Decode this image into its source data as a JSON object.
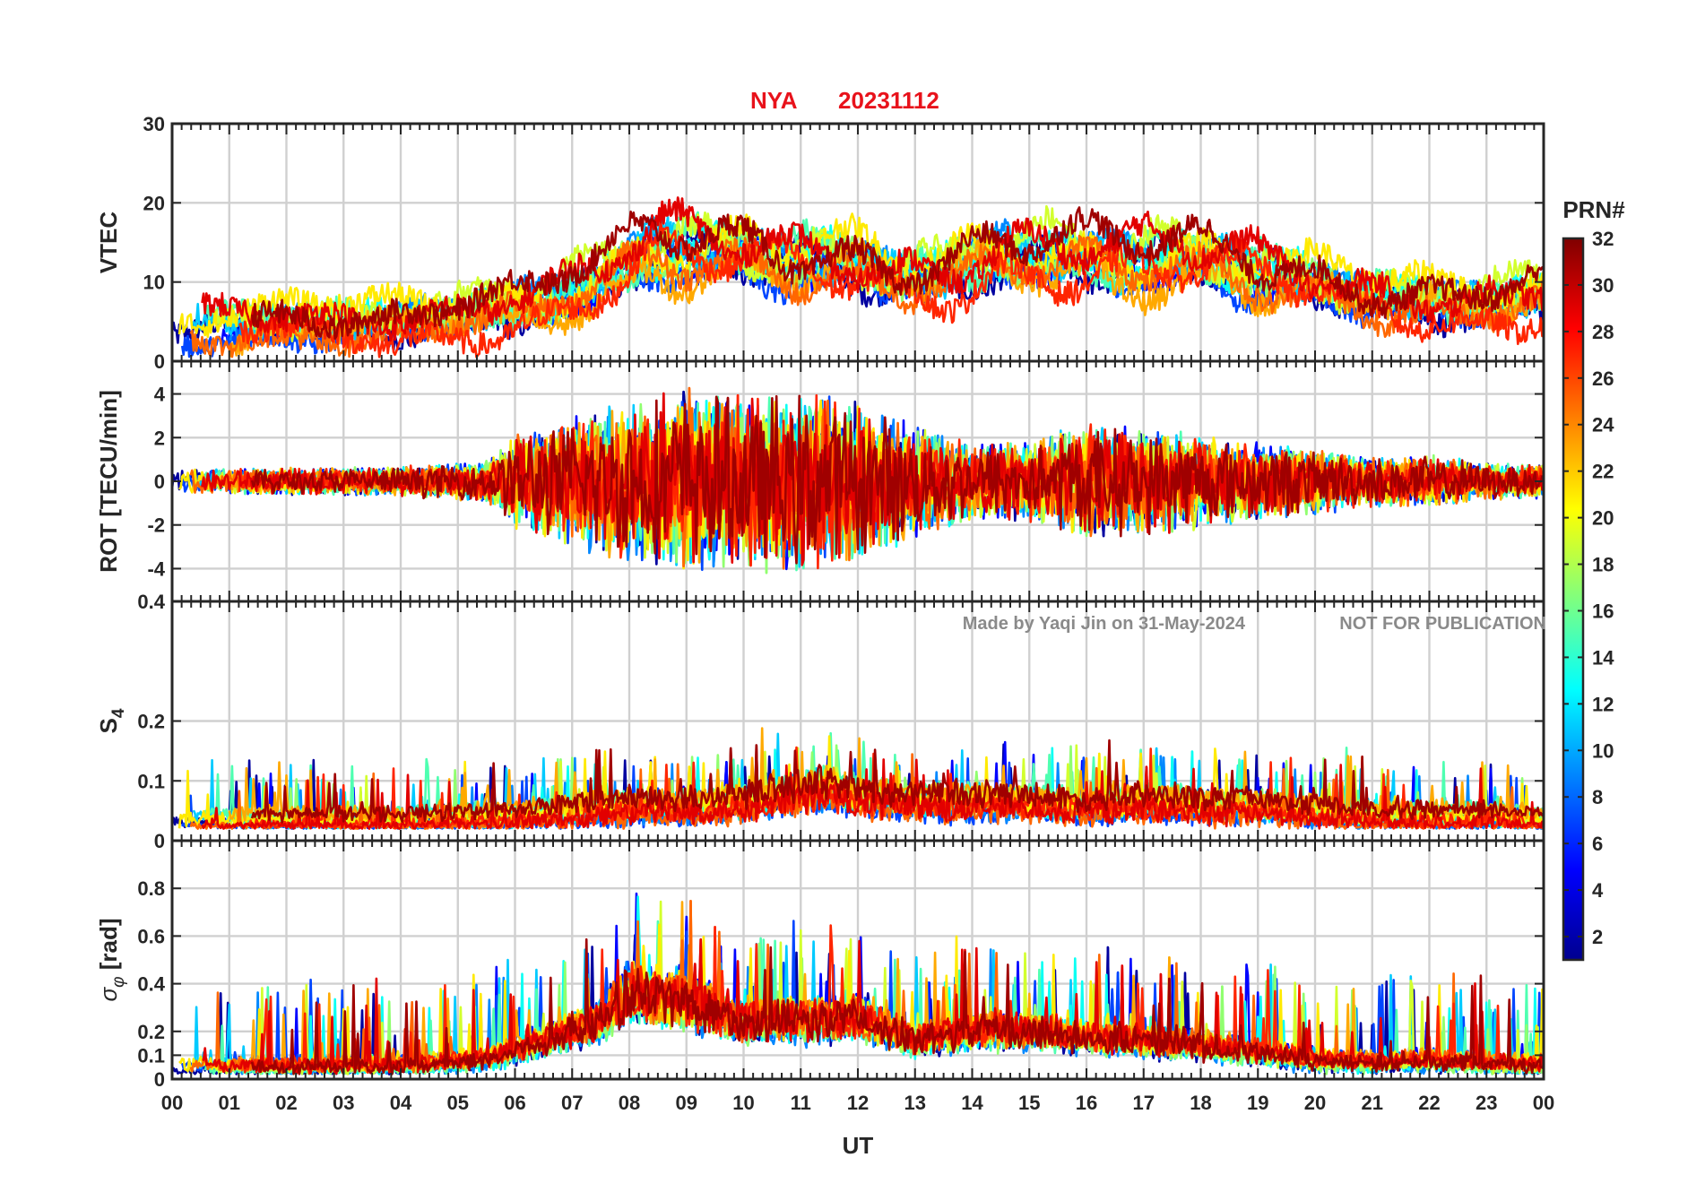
{
  "chart_data": {
    "type": "line",
    "title_station": "NYA",
    "title_date": "20231112",
    "xlabel": "UT",
    "x_ticks": [
      "00",
      "01",
      "02",
      "03",
      "04",
      "05",
      "06",
      "07",
      "08",
      "09",
      "10",
      "11",
      "12",
      "13",
      "14",
      "15",
      "16",
      "17",
      "18",
      "19",
      "20",
      "21",
      "22",
      "23",
      "00"
    ],
    "xlim": [
      0,
      24
    ],
    "colorbar": {
      "label": "PRN#",
      "range": [
        1,
        32
      ],
      "ticks": [
        "32",
        "30",
        "28",
        "26",
        "24",
        "22",
        "20",
        "18",
        "16",
        "14",
        "12",
        "10",
        "8",
        "6",
        "4",
        "2"
      ],
      "colormap": "jet"
    },
    "watermark_left": "Made by Yaqi Jin on 31-May-2024",
    "watermark_right": "NOT FOR PUBLICATION",
    "panels": [
      {
        "name": "vtec",
        "ylabel": "VTEC",
        "ylim": [
          0,
          30
        ],
        "y_ticks": [
          {
            "v": 0,
            "t": "0"
          },
          {
            "v": 10,
            "t": "10"
          },
          {
            "v": 20,
            "t": "20"
          },
          {
            "v": 30,
            "t": "30"
          }
        ],
        "series_kind": "level",
        "envelope_hours": [
          0,
          2,
          4,
          5.5,
          6.5,
          7.5,
          8.5,
          9.5,
          10.5,
          11.5,
          12.5,
          13.5,
          14.5,
          15.5,
          16.5,
          17.5,
          18.5,
          19.5,
          20.5,
          21.5,
          22.5,
          24
        ],
        "envelope_values": [
          4,
          5,
          5,
          6,
          7,
          10,
          14,
          14,
          13,
          13,
          11,
          11,
          13,
          13,
          12,
          13,
          12,
          11,
          9,
          8,
          7,
          8
        ],
        "spread": 3.5,
        "noise": 1.6
      },
      {
        "name": "rot",
        "ylabel": "ROT [TECU/min]",
        "ylim": [
          -5.5,
          5.5
        ],
        "y_ticks": [
          {
            "v": -4,
            "t": "-4"
          },
          {
            "v": -2,
            "t": "-2"
          },
          {
            "v": 0,
            "t": "0"
          },
          {
            "v": 2,
            "t": "2"
          },
          {
            "v": 4,
            "t": "4"
          }
        ],
        "series_kind": "oscillation",
        "envelope_hours": [
          0,
          4,
          5.5,
          6,
          7,
          8,
          9,
          10,
          11,
          12,
          13,
          14,
          15,
          16,
          17,
          18,
          19,
          20,
          21,
          22,
          23,
          24
        ],
        "envelope_values": [
          0.6,
          0.7,
          1.0,
          2.3,
          3.0,
          4.0,
          4.5,
          4.2,
          4.5,
          3.8,
          2.8,
          1.8,
          2.0,
          2.8,
          2.6,
          2.2,
          1.9,
          1.6,
          1.2,
          1.3,
          0.9,
          0.8
        ],
        "spread": 0,
        "noise": 0
      },
      {
        "name": "s4",
        "ylabel": "S4",
        "ylim": [
          0,
          0.4
        ],
        "y_ticks": [
          {
            "v": 0,
            "t": "0"
          },
          {
            "v": 0.1,
            "t": "0.1"
          },
          {
            "v": 0.2,
            "t": "0.2"
          },
          {
            "v": 0.4,
            "t": "0.4"
          }
        ],
        "series_kind": "positive",
        "envelope_hours": [
          0,
          4,
          6,
          7,
          8,
          9,
          10,
          11,
          11.5,
          12,
          13,
          14,
          15,
          16,
          17,
          18,
          19,
          20,
          21,
          22,
          23,
          24
        ],
        "envelope_values": [
          0.04,
          0.04,
          0.05,
          0.06,
          0.07,
          0.07,
          0.08,
          0.1,
          0.11,
          0.09,
          0.08,
          0.08,
          0.08,
          0.07,
          0.08,
          0.07,
          0.07,
          0.06,
          0.05,
          0.05,
          0.05,
          0.04
        ],
        "spread": 0.015,
        "noise": 0.03
      },
      {
        "name": "sigma_phi",
        "ylabel": "σ_φ [rad]",
        "ylim": [
          0,
          1
        ],
        "y_ticks": [
          {
            "v": 0,
            "t": "0"
          },
          {
            "v": 0.1,
            "t": "0.1"
          },
          {
            "v": 0.2,
            "t": "0.2"
          },
          {
            "v": 0.4,
            "t": "0.4"
          },
          {
            "v": 0.6,
            "t": "0.6"
          },
          {
            "v": 0.8,
            "t": "0.8"
          }
        ],
        "series_kind": "positive",
        "envelope_hours": [
          0,
          4,
          5.5,
          6.5,
          7.5,
          8,
          9,
          10,
          11,
          12,
          13,
          14,
          15,
          16,
          17,
          18,
          19,
          20,
          21,
          22,
          23,
          24
        ],
        "envelope_values": [
          0.06,
          0.07,
          0.1,
          0.2,
          0.3,
          0.45,
          0.4,
          0.3,
          0.3,
          0.32,
          0.2,
          0.25,
          0.25,
          0.22,
          0.2,
          0.17,
          0.14,
          0.1,
          0.08,
          0.1,
          0.08,
          0.07
        ],
        "spread": 0.02,
        "noise": 0.12
      }
    ]
  }
}
